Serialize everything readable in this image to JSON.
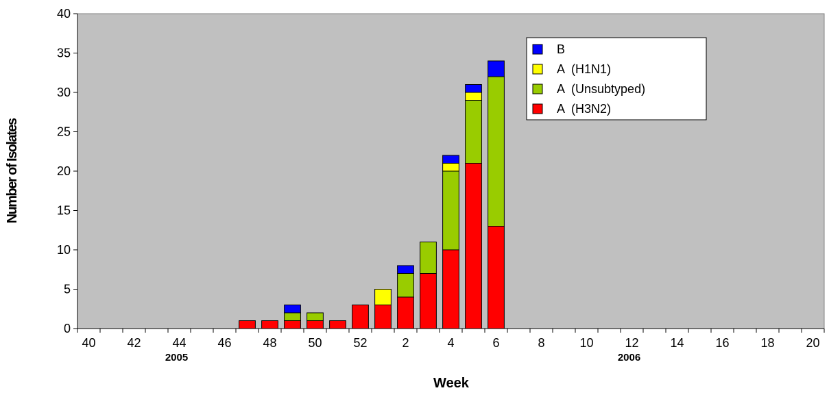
{
  "chart_data": {
    "type": "bar",
    "stacked": true,
    "x": [
      40,
      41,
      42,
      43,
      44,
      45,
      46,
      47,
      48,
      49,
      50,
      51,
      52,
      1,
      2,
      3,
      4,
      5,
      6,
      7,
      8,
      9,
      10,
      11,
      12,
      13,
      14,
      15,
      16,
      17,
      18,
      19,
      20
    ],
    "tick_labels": [
      "40",
      "42",
      "44",
      "46",
      "48",
      "50",
      "52",
      "2",
      "4",
      "6",
      "8",
      "10",
      "12",
      "14",
      "16",
      "18",
      "20"
    ],
    "year_labels": [
      "2005",
      "2006"
    ],
    "xlabel": "Week",
    "ylabel": "Number of Isolates",
    "ylim": [
      0,
      40
    ],
    "yticks": [
      0,
      5,
      10,
      15,
      20,
      25,
      30,
      35,
      40
    ],
    "grid": false,
    "legend_position": "top-right",
    "series": [
      {
        "name": "A  (H3N2)",
        "color": "#ff0000",
        "values": [
          0,
          0,
          0,
          0,
          0,
          0,
          0,
          1,
          1,
          1,
          1,
          1,
          3,
          3,
          4,
          7,
          10,
          21,
          13,
          0,
          0,
          0,
          0,
          0,
          0,
          0,
          0,
          0,
          0,
          0,
          0,
          0,
          0
        ]
      },
      {
        "name": "A  (Unsubtyped)",
        "color": "#99cc00",
        "values": [
          0,
          0,
          0,
          0,
          0,
          0,
          0,
          0,
          0,
          1,
          1,
          0,
          0,
          0,
          3,
          4,
          10,
          8,
          19,
          0,
          0,
          0,
          0,
          0,
          0,
          0,
          0,
          0,
          0,
          0,
          0,
          0,
          0
        ]
      },
      {
        "name": "A  (H1N1)",
        "color": "#ffff00",
        "values": [
          0,
          0,
          0,
          0,
          0,
          0,
          0,
          0,
          0,
          0,
          0,
          0,
          0,
          2,
          0,
          0,
          1,
          1,
          0,
          0,
          0,
          0,
          0,
          0,
          0,
          0,
          0,
          0,
          0,
          0,
          0,
          0,
          0
        ]
      },
      {
        "name": "B",
        "color": "#0000ff",
        "values": [
          0,
          0,
          0,
          0,
          0,
          0,
          0,
          0,
          0,
          1,
          0,
          0,
          0,
          0,
          1,
          0,
          1,
          1,
          2,
          0,
          0,
          0,
          0,
          0,
          0,
          0,
          0,
          0,
          0,
          0,
          0,
          0,
          0
        ]
      }
    ],
    "legend_order": [
      "B",
      "A  (H1N1)",
      "A  (Unsubtyped)",
      "A  (H3N2)"
    ],
    "plot_background": "#c0c0c0"
  }
}
